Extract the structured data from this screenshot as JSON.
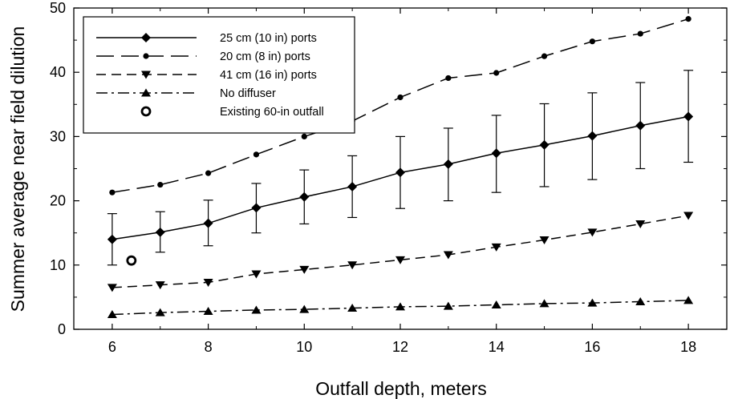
{
  "chart_data": {
    "type": "line",
    "xlabel": "Outfall depth, meters",
    "ylabel": "Summer average near field dilution",
    "xlim": [
      5.2,
      18.8
    ],
    "ylim": [
      0,
      50
    ],
    "xticks": [
      6,
      8,
      10,
      12,
      14,
      16,
      18
    ],
    "yticks": [
      0,
      10,
      20,
      30,
      40,
      50
    ],
    "grid": false,
    "legend_position": "top-left",
    "x": [
      6,
      7,
      8,
      9,
      10,
      11,
      12,
      13,
      14,
      15,
      16,
      17,
      18
    ],
    "series": [
      {
        "name": "25 cm (10 in) ports",
        "marker": "diamond",
        "dash": "solid",
        "values": [
          14.0,
          15.1,
          16.5,
          18.9,
          20.6,
          22.2,
          24.4,
          25.7,
          27.4,
          28.7,
          30.1,
          31.7,
          33.1
        ],
        "error_low": [
          10.0,
          12.0,
          13.0,
          15.0,
          16.4,
          17.4,
          18.8,
          20.0,
          21.3,
          22.2,
          23.3,
          25.0,
          26.0
        ],
        "error_high": [
          18.0,
          18.3,
          20.1,
          22.7,
          24.8,
          27.0,
          30.0,
          31.3,
          33.3,
          35.1,
          36.8,
          38.4,
          40.3
        ]
      },
      {
        "name": "20 cm (8 in) ports",
        "marker": "circle",
        "dash": "long",
        "values": [
          21.3,
          22.5,
          24.3,
          27.2,
          30.0,
          32.4,
          36.1,
          39.1,
          39.9,
          42.5,
          44.8,
          46.0,
          48.3
        ]
      },
      {
        "name": "41 cm (16 in) ports",
        "marker": "triangle-down",
        "dash": "short",
        "values": [
          6.5,
          6.9,
          7.3,
          8.6,
          9.3,
          10.0,
          10.8,
          11.6,
          12.8,
          13.9,
          15.1,
          16.4,
          17.7
        ]
      },
      {
        "name": "No diffuser",
        "marker": "triangle-up",
        "dash": "dashdot",
        "values": [
          2.3,
          2.6,
          2.8,
          3.0,
          3.1,
          3.3,
          3.5,
          3.6,
          3.8,
          4.0,
          4.1,
          4.3,
          4.5
        ]
      }
    ],
    "points": [
      {
        "name": "Existing 60-in outfall",
        "marker": "open-circle",
        "x": 6.4,
        "y": 10.7
      }
    ]
  }
}
